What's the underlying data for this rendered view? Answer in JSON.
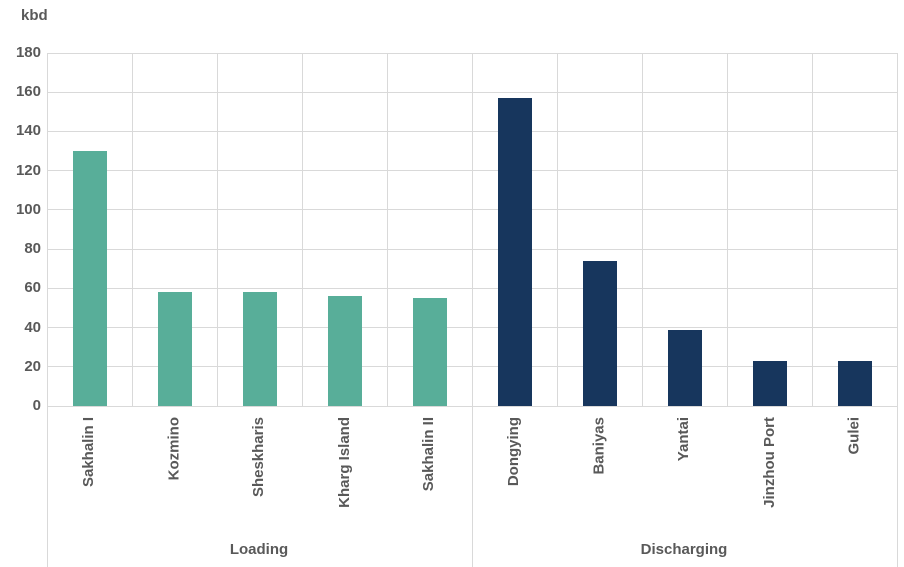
{
  "chart_data": {
    "type": "bar",
    "title": "",
    "ylabel": "kbd",
    "xlabel": "",
    "ylim": [
      0,
      180
    ],
    "ytick_step": 20,
    "yticks": [
      0,
      20,
      40,
      60,
      80,
      100,
      120,
      140,
      160,
      180
    ],
    "grid": true,
    "legend": "none",
    "groups": [
      {
        "label": "Loading",
        "color": "#58AE99",
        "categories": [
          "Sakhalin I",
          "Kozmino",
          "Sheskharis",
          "Kharg Island",
          "Sakhalin II"
        ],
        "values": [
          130,
          58,
          58,
          56,
          55
        ]
      },
      {
        "label": "Discharging",
        "color": "#17365D",
        "categories": [
          "Dongying",
          "Baniyas",
          "Yantai",
          "Jinzhou Port",
          "Gulei"
        ],
        "values": [
          157,
          74,
          39,
          23,
          23
        ]
      }
    ],
    "colors": {
      "gridline": "#D9D9D9",
      "axis_text": "#595959"
    }
  }
}
